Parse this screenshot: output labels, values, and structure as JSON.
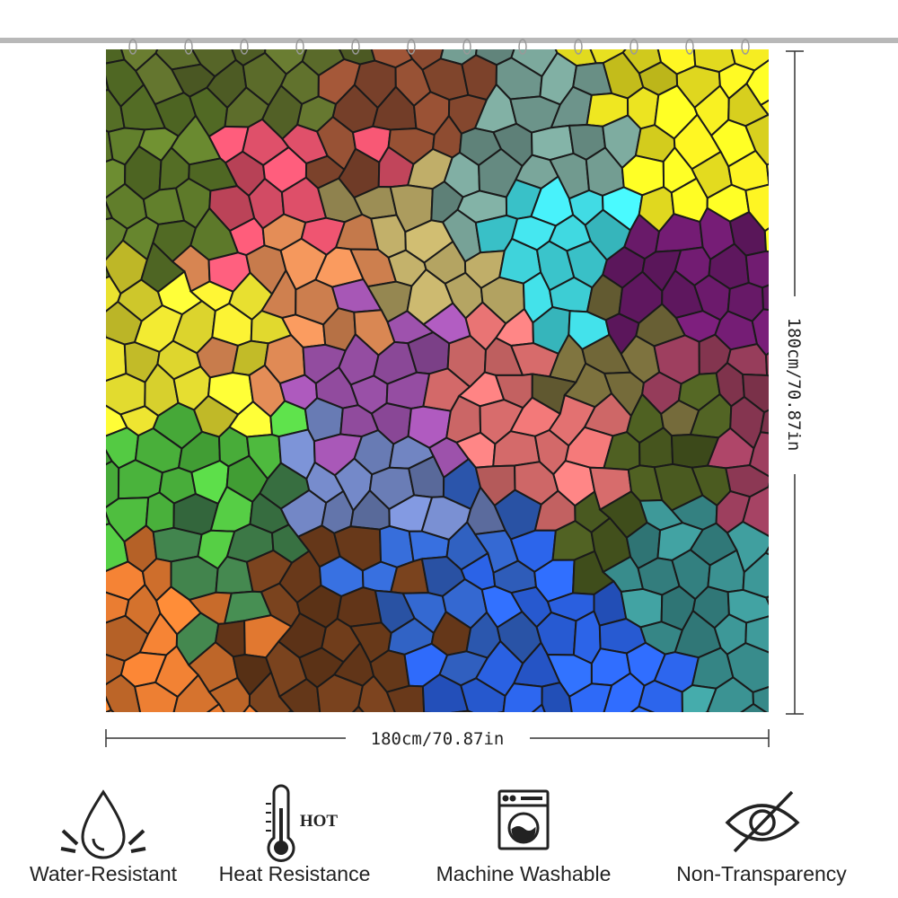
{
  "dimensions": {
    "width_label": "180cm/70.87in",
    "height_label": "180cm/70.87in"
  },
  "features": [
    {
      "label": "Water-Resistant"
    },
    {
      "label": "Heat Resistance",
      "icon_text": "HOT"
    },
    {
      "label": "Machine Washable"
    },
    {
      "label": "Non-Transparency"
    }
  ]
}
